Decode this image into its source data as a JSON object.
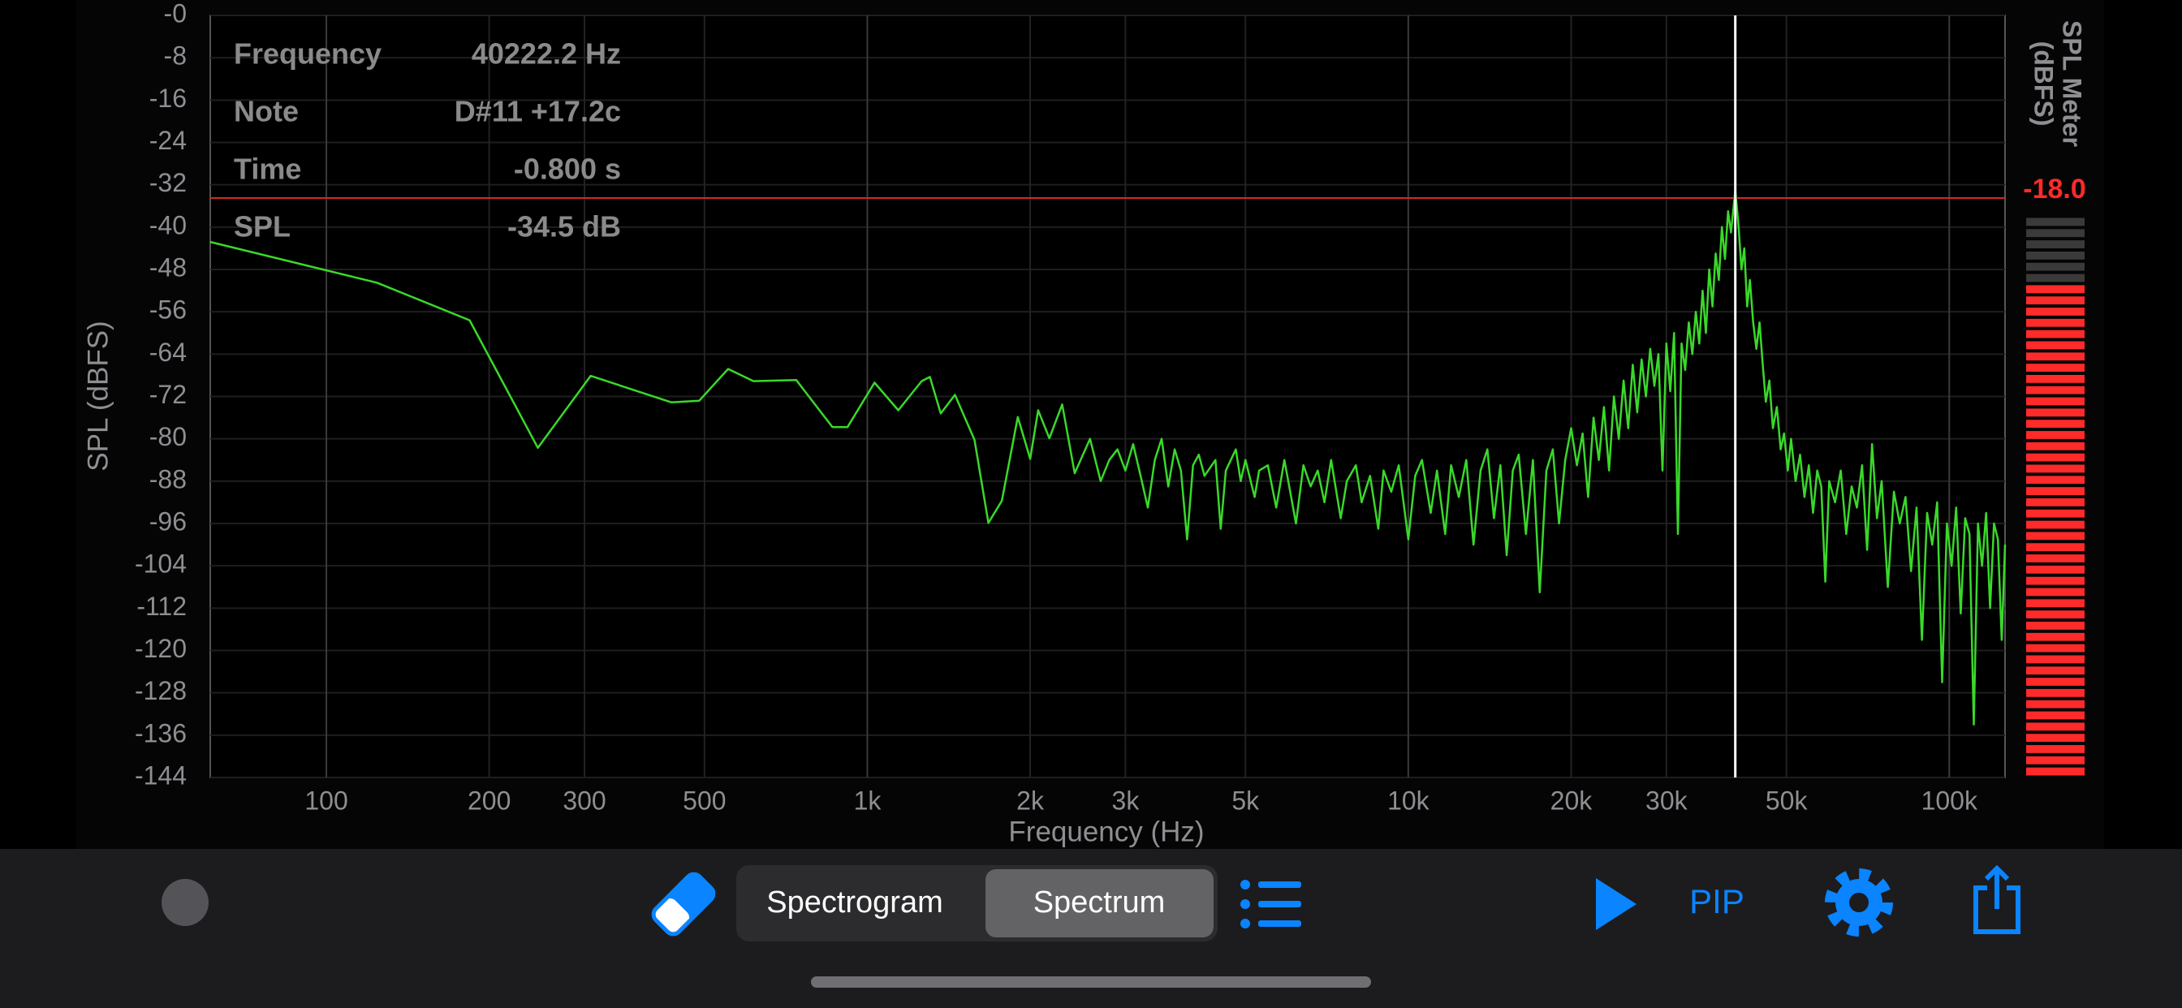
{
  "chart_data": {
    "type": "line",
    "x_label": "Frequency (Hz)",
    "y_label": "SPL (dBFS)",
    "xlog": true,
    "grid": true,
    "xlim": [
      61,
      126800
    ],
    "ylim": [
      -144,
      0
    ],
    "xticks": [
      100,
      200,
      300,
      500,
      {
        "value": 1000,
        "label": "1k"
      },
      {
        "value": 2000,
        "label": "2k"
      },
      {
        "value": 3000,
        "label": "3k"
      },
      {
        "value": 5000,
        "label": "5k"
      },
      {
        "value": 10000,
        "label": "10k"
      },
      {
        "value": 20000,
        "label": "20k"
      },
      {
        "value": 30000,
        "label": "30k"
      },
      {
        "value": 50000,
        "label": "50k"
      },
      {
        "value": 100000,
        "label": "100k"
      }
    ],
    "yticks": [
      {
        "value": 0,
        "label": "-0"
      },
      -8,
      -16,
      -24,
      -32,
      -40,
      -48,
      -56,
      -64,
      -72,
      -80,
      -88,
      -96,
      -104,
      -112,
      -120,
      -128,
      -136,
      -144
    ],
    "crosshair": {
      "x": 40222.2,
      "y": -34.5,
      "x_color": "#ffffff",
      "y_color": "#d02a2a"
    },
    "series": [
      {
        "color": "#3ad82a",
        "x": [
          61,
          124,
          184,
          246,
          308,
          434,
          489,
          553,
          616,
          739,
          862,
          919,
          1031,
          1141,
          1260,
          1305,
          1367,
          1452,
          1578,
          1674,
          1773,
          1897,
          2000,
          2069,
          2170,
          2292,
          2417,
          2580,
          2700,
          2800,
          2900,
          3000,
          3100,
          3200,
          3300,
          3400,
          3500,
          3600,
          3700,
          3800,
          3900,
          4000,
          4100,
          4200,
          4400,
          4500,
          4600,
          4800,
          4900,
          5000,
          5200,
          5300,
          5500,
          5700,
          5900,
          6000,
          6200,
          6400,
          6600,
          6800,
          7000,
          7200,
          7500,
          7700,
          8000,
          8200,
          8500,
          8800,
          9000,
          9300,
          9600,
          10000,
          10300,
          10600,
          11000,
          11300,
          11700,
          12000,
          12400,
          12800,
          13200,
          13600,
          14000,
          14400,
          14800,
          15200,
          15600,
          16000,
          16500,
          17000,
          17500,
          18000,
          18500,
          19000,
          19500,
          20000,
          20500,
          21000,
          21500,
          22000,
          22500,
          23000,
          23500,
          24000,
          24500,
          25000,
          25500,
          26000,
          26500,
          27000,
          27500,
          28000,
          28500,
          29000,
          29500,
          30000,
          30500,
          31000,
          31500,
          32000,
          32500,
          33000,
          33500,
          34000,
          34500,
          35000,
          35500,
          36000,
          36500,
          37000,
          37500,
          38000,
          38500,
          39000,
          39500,
          40222,
          40800,
          41300,
          41800,
          42300,
          42800,
          43400,
          44000,
          44600,
          45200,
          45800,
          46500,
          47200,
          48000,
          48800,
          49500,
          50300,
          51000,
          52000,
          53000,
          54000,
          55000,
          56000,
          57000,
          58000,
          59000,
          60000,
          61500,
          63000,
          64500,
          66000,
          67500,
          69000,
          70500,
          72000,
          73500,
          75000,
          77000,
          79000,
          81000,
          83000,
          85000,
          87000,
          89000,
          91000,
          93000,
          95000,
          97000,
          99000,
          101000,
          103000,
          105000,
          107000,
          109000,
          111000,
          113000,
          115000,
          117000,
          119000,
          121000,
          123000,
          125000,
          126800
        ],
        "values": [
          -42.8,
          -50.5,
          -57.6,
          -81.7,
          -68.1,
          -73.1,
          -72.8,
          -66.8,
          -69.1,
          -68.9,
          -77.8,
          -77.8,
          -69.4,
          -74.6,
          -69.1,
          -68.3,
          -75.2,
          -71.7,
          -80.2,
          -95.9,
          -91.7,
          -75.9,
          -83.8,
          -74.6,
          -79.9,
          -73.5,
          -86.5,
          -80,
          -88,
          -84,
          -82,
          -86,
          -81,
          -87,
          -93,
          -84,
          -80,
          -89,
          -82,
          -86,
          -99,
          -85,
          -83,
          -87,
          -84,
          -97,
          -86,
          -82,
          -88,
          -84,
          -91,
          -86,
          -85,
          -93,
          -84,
          -88,
          -96,
          -85,
          -89,
          -86,
          -92,
          -84,
          -95,
          -88,
          -85,
          -92,
          -87,
          -97,
          -86,
          -90,
          -85,
          -99,
          -87,
          -84,
          -94,
          -86,
          -98,
          -85,
          -91,
          -84,
          -100,
          -86,
          -82,
          -95,
          -85,
          -102,
          -86,
          -83,
          -98,
          -84,
          -109,
          -86,
          -82,
          -96,
          -84,
          -78,
          -85,
          -79,
          -91,
          -76,
          -84,
          -74,
          -86,
          -72,
          -80,
          -69,
          -78,
          -66,
          -75,
          -65,
          -72,
          -63,
          -70,
          -64,
          -86,
          -62,
          -71,
          -60,
          -98,
          -62,
          -67,
          -58,
          -64,
          -56,
          -62,
          -52,
          -60,
          -48,
          -55,
          -45,
          -50,
          -40,
          -46,
          -37,
          -41,
          -33,
          -40,
          -48,
          -44,
          -55,
          -50,
          -58,
          -63,
          -58,
          -66,
          -73,
          -69,
          -78,
          -74,
          -82,
          -79,
          -86,
          -80,
          -88,
          -83,
          -91,
          -85,
          -94,
          -86,
          -89,
          -107,
          -88,
          -92,
          -86,
          -98,
          -89,
          -93,
          -85,
          -101,
          -81,
          -95,
          -88,
          -108,
          -90,
          -96,
          -91,
          -105,
          -93,
          -118,
          -94,
          -100,
          -92,
          -126,
          -96,
          -104,
          -93,
          -113,
          -95,
          -98,
          -134,
          -96,
          -104,
          -94,
          -112,
          -96,
          -99,
          -118,
          -100
        ]
      }
    ]
  },
  "info_panel": {
    "rows": [
      [
        "Frequency",
        "40222.2 Hz"
      ],
      [
        "Note",
        "D#11 +17.2c"
      ],
      [
        "Time",
        "-0.800 s"
      ],
      [
        "SPL",
        "-34.5 dB"
      ]
    ]
  },
  "meter": {
    "title": [
      "SPL Meter",
      "(dBFS)"
    ],
    "value": -18,
    "value_label": "-18.0",
    "color": "#ff2a2a"
  },
  "toolbar": {
    "segments": [
      "Spectrogram",
      "Spectrum"
    ],
    "selected": 1,
    "pip": "PIP"
  }
}
